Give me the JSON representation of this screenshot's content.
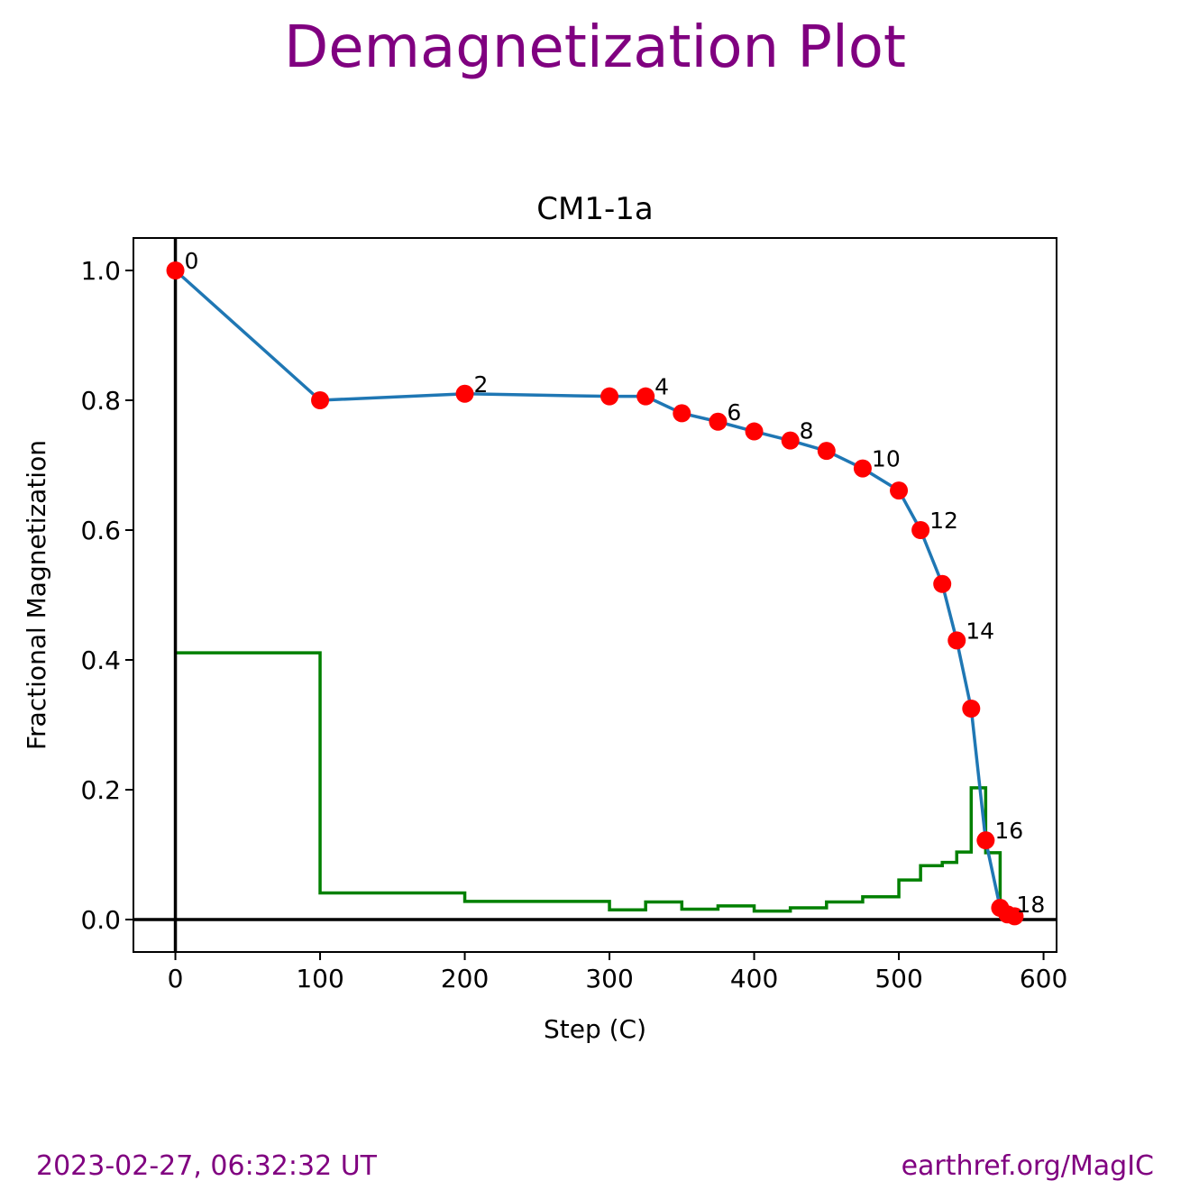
{
  "figure": {
    "title": "Demagnetization Plot",
    "footer_left": "2023-02-27, 06:32:32 UT",
    "footer_right": "earthref.org/MagIC"
  },
  "chart_data": {
    "type": "line",
    "title": "CM1-1a",
    "xlabel": "Step (C)",
    "ylabel": "Fractional Magnetization",
    "xlim": [
      -29,
      609
    ],
    "ylim": [
      -0.05,
      1.05
    ],
    "xticks": [
      0,
      100,
      200,
      300,
      400,
      500,
      600
    ],
    "yticks": [
      0.0,
      0.2,
      0.4,
      0.6,
      0.8,
      1.0
    ],
    "ytick_labels": [
      "0.0",
      "0.2",
      "0.4",
      "0.6",
      "0.8",
      "1.0"
    ],
    "grid": false,
    "colors": {
      "line": "#1f77b4",
      "points": "#ff0000",
      "step": "#008000",
      "axes_lines": "#000000",
      "title": "#800080"
    },
    "series": [
      {
        "kind": "line-with-markers",
        "x": [
          0,
          100,
          200,
          300,
          325,
          350,
          375,
          400,
          425,
          450,
          475,
          500,
          515,
          530,
          540,
          550,
          560,
          570,
          575,
          580
        ],
        "y": [
          1.0,
          0.8,
          0.81,
          0.806,
          0.806,
          0.78,
          0.767,
          0.752,
          0.738,
          0.722,
          0.695,
          0.661,
          0.6,
          0.517,
          0.43,
          0.325,
          0.122,
          0.018,
          0.008,
          0.005
        ]
      },
      {
        "kind": "step",
        "x": [
          0,
          100,
          200,
          300,
          325,
          350,
          375,
          400,
          425,
          450,
          475,
          500,
          515,
          530,
          540,
          550,
          560,
          570,
          575,
          580
        ],
        "y": [
          0.411,
          0.041,
          0.028,
          0.015,
          0.027,
          0.016,
          0.021,
          0.013,
          0.018,
          0.027,
          0.035,
          0.061,
          0.083,
          0.088,
          0.104,
          0.203,
          0.103,
          0.01,
          0.003,
          0.003
        ]
      }
    ],
    "point_labels": [
      {
        "index": 0,
        "text": "0"
      },
      {
        "index": 2,
        "text": "2"
      },
      {
        "index": 4,
        "text": "4"
      },
      {
        "index": 6,
        "text": "6"
      },
      {
        "index": 8,
        "text": "8"
      },
      {
        "index": 10,
        "text": "10"
      },
      {
        "index": 12,
        "text": "12"
      },
      {
        "index": 14,
        "text": "14"
      },
      {
        "index": 16,
        "text": "16"
      },
      {
        "index": 18,
        "text": "18"
      }
    ]
  }
}
